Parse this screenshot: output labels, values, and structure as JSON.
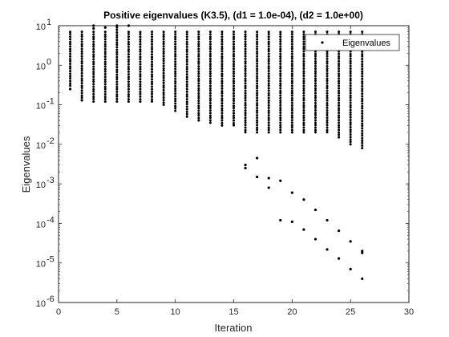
{
  "chart_data": {
    "type": "scatter",
    "title": "Positive eigenvalues (K3.5), (d1 = 1.0e-04), (d2 = 1.0e+00)",
    "xlabel": "Iteration",
    "ylabel": "Eigenvalues",
    "xlim": [
      0,
      30
    ],
    "ylim": [
      1e-06,
      10
    ],
    "yscale": "log",
    "grid": false,
    "legend_position": "top-right",
    "x_ticks": [
      "0",
      "5",
      "10",
      "15",
      "20",
      "25",
      "30"
    ],
    "y_ticks": [
      "10",
      "10",
      "10",
      "10",
      "10",
      "10",
      "10",
      "10"
    ],
    "y_tick_exponents": [
      "-6",
      "-5",
      "-4",
      "-3",
      "-2",
      "-1",
      "0",
      "1"
    ],
    "marker_color": "#000000",
    "series": [
      {
        "name": "Eigenvalues",
        "columns": [
          {
            "x": 1,
            "min": 0.3,
            "max": 7.0
          },
          {
            "x": 2,
            "min": 0.15,
            "max": 7.0
          },
          {
            "x": 3,
            "min": 0.12,
            "max": 7.0
          },
          {
            "x": 4,
            "min": 0.12,
            "max": 7.0
          },
          {
            "x": 5,
            "min": 0.12,
            "max": 9.0
          },
          {
            "x": 6,
            "min": 0.12,
            "max": 7.0
          },
          {
            "x": 7,
            "min": 0.12,
            "max": 7.0
          },
          {
            "x": 8,
            "min": 0.12,
            "max": 7.0
          },
          {
            "x": 9,
            "min": 0.1,
            "max": 7.0
          },
          {
            "x": 10,
            "min": 0.07,
            "max": 7.0
          },
          {
            "x": 11,
            "min": 0.05,
            "max": 7.0
          },
          {
            "x": 12,
            "min": 0.04,
            "max": 7.0
          },
          {
            "x": 13,
            "min": 0.035,
            "max": 7.0
          },
          {
            "x": 14,
            "min": 0.03,
            "max": 7.0
          },
          {
            "x": 15,
            "min": 0.03,
            "max": 7.0
          },
          {
            "x": 16,
            "min": 0.02,
            "max": 7.0
          },
          {
            "x": 17,
            "min": 0.02,
            "max": 7.0
          },
          {
            "x": 18,
            "min": 0.02,
            "max": 7.0
          },
          {
            "x": 19,
            "min": 0.02,
            "max": 7.0
          },
          {
            "x": 20,
            "min": 0.02,
            "max": 7.0
          },
          {
            "x": 21,
            "min": 0.02,
            "max": 7.0
          },
          {
            "x": 22,
            "min": 0.02,
            "max": 7.0
          },
          {
            "x": 23,
            "min": 0.02,
            "max": 7.0
          },
          {
            "x": 24,
            "min": 0.015,
            "max": 7.0
          },
          {
            "x": 25,
            "min": 0.01,
            "max": 7.0
          },
          {
            "x": 26,
            "min": 0.008,
            "max": 7.0
          }
        ],
        "outliers": [
          {
            "x": 1,
            "y": 0.25
          },
          {
            "x": 2,
            "y": 0.13
          },
          {
            "x": 3,
            "y": 10
          },
          {
            "x": 3,
            "y": 8.5
          },
          {
            "x": 4,
            "y": 9
          },
          {
            "x": 5,
            "y": 10
          },
          {
            "x": 6,
            "y": 10
          },
          {
            "x": 16,
            "y": 0.003
          },
          {
            "x": 16,
            "y": 0.0025
          },
          {
            "x": 17,
            "y": 0.0045
          },
          {
            "x": 17,
            "y": 0.0015
          },
          {
            "x": 18,
            "y": 0.0014
          },
          {
            "x": 18,
            "y": 0.0008
          },
          {
            "x": 19,
            "y": 0.0012
          },
          {
            "x": 19,
            "y": 0.00012
          },
          {
            "x": 20,
            "y": 0.0006
          },
          {
            "x": 20,
            "y": 0.00011
          },
          {
            "x": 21,
            "y": 0.0004
          },
          {
            "x": 21,
            "y": 7e-05
          },
          {
            "x": 22,
            "y": 0.00022
          },
          {
            "x": 22,
            "y": 4e-05
          },
          {
            "x": 23,
            "y": 0.00012
          },
          {
            "x": 23,
            "y": 2.2e-05
          },
          {
            "x": 24,
            "y": 6.5e-05
          },
          {
            "x": 24,
            "y": 1.3e-05
          },
          {
            "x": 25,
            "y": 3.5e-05
          },
          {
            "x": 25,
            "y": 7e-06
          },
          {
            "x": 26,
            "y": 2e-05
          },
          {
            "x": 26,
            "y": 1.8e-05
          },
          {
            "x": 26,
            "y": 4e-06
          }
        ]
      }
    ]
  }
}
